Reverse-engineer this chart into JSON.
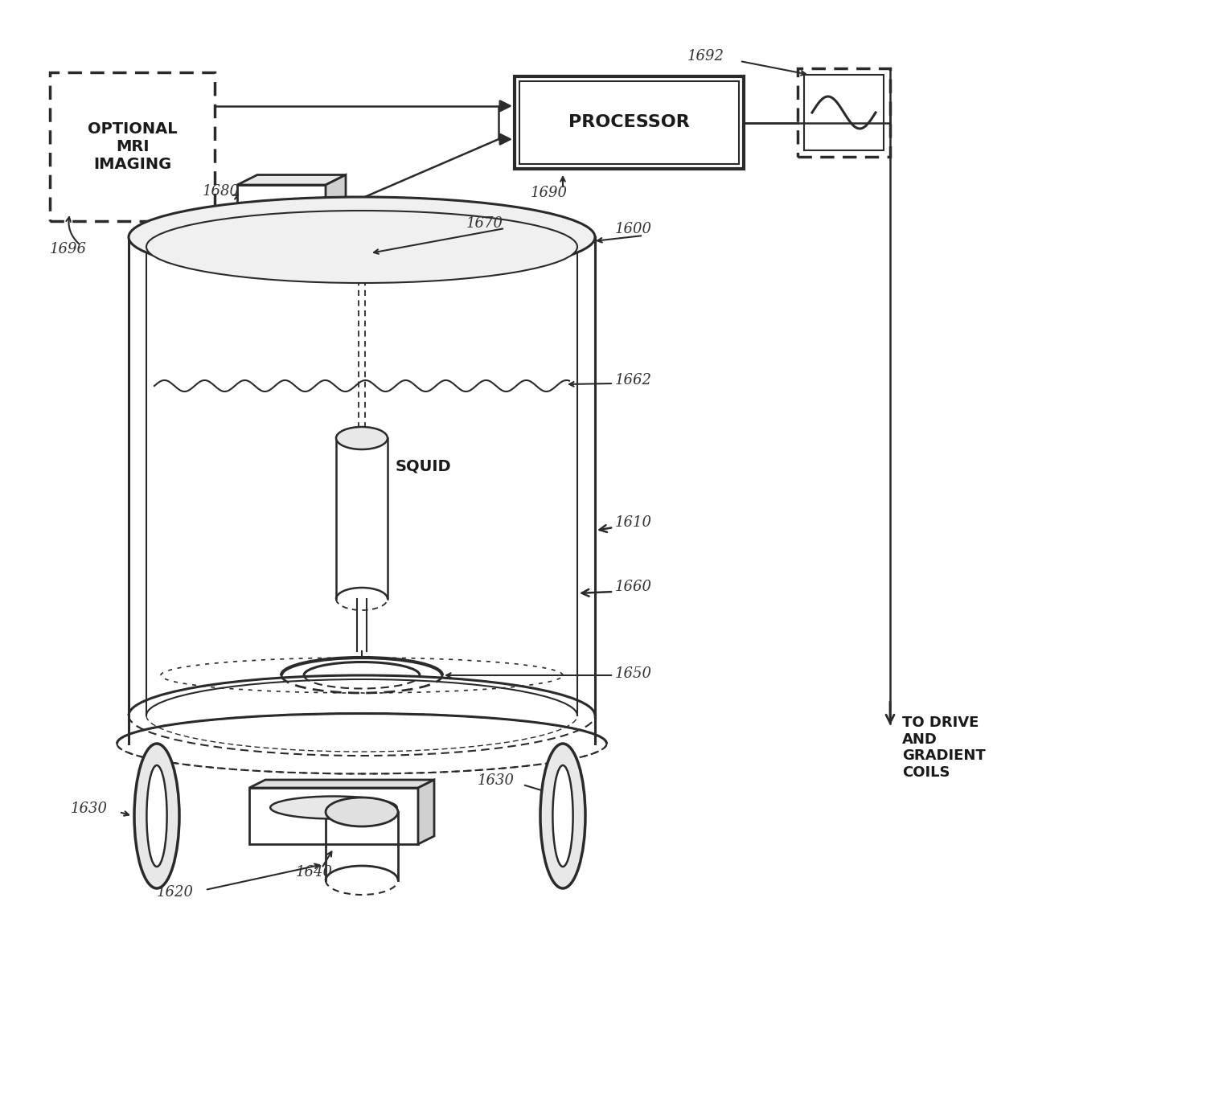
{
  "bg": "#ffffff",
  "lc": "#2a2a2a",
  "tc": "#1a1a1a",
  "labels": {
    "optional_mri": "OPTIONAL\nMRI\nIMAGING",
    "processor": "PROCESSOR",
    "squid": "SQUID",
    "to_drive": "TO DRIVE\nAND\nGRADIENT\nCOILS",
    "1600": "1600",
    "1610": "1610",
    "1620": "1620",
    "1630a": "1630",
    "1630b": "1630",
    "1640": "1640",
    "1650": "1650",
    "1660": "1660",
    "1662": "1662",
    "1670": "1670",
    "1680": "1680",
    "1690": "1690",
    "1692": "1692",
    "1696": "1696"
  }
}
